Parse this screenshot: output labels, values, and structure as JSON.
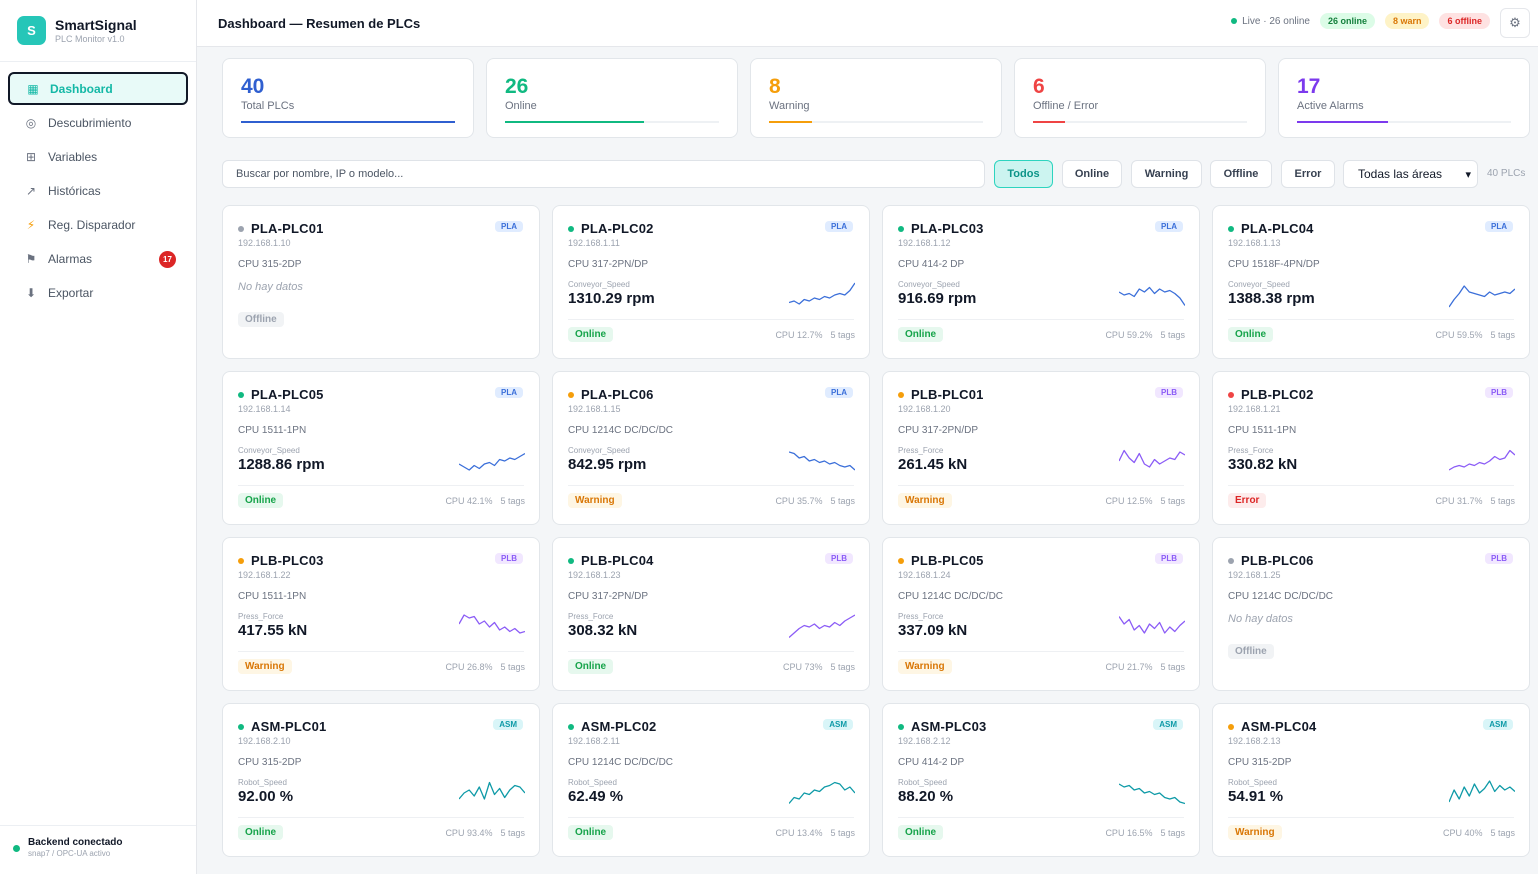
{
  "brand": {
    "logo_letter": "S",
    "name": "SmartSignal",
    "subtitle": "PLC Monitor v1.0"
  },
  "nav": [
    {
      "label": "Dashboard",
      "icon": "grid-square-icon",
      "glyph": "▦",
      "active": true
    },
    {
      "label": "Descubrimiento",
      "icon": "radar-icon",
      "glyph": "◎"
    },
    {
      "label": "Variables",
      "icon": "table-icon",
      "glyph": "⊞"
    },
    {
      "label": "Históricas",
      "icon": "trend-icon",
      "glyph": "↗"
    },
    {
      "label": "Reg. Disparador",
      "icon": "bolt-icon",
      "glyph": "⚡"
    },
    {
      "label": "Alarmas",
      "icon": "flag-icon",
      "glyph": "⚑",
      "badge": "17"
    },
    {
      "label": "Exportar",
      "icon": "download-icon",
      "glyph": "⬇"
    }
  ],
  "footer": {
    "title": "Backend conectado",
    "subtitle": "snap7 / OPC-UA activo"
  },
  "header": {
    "title": "Dashboard — Resumen de PLCs",
    "live": "Live · 26 online",
    "online_pill": "26 online",
    "warn_pill": "8 warn",
    "offline_pill": "6 offline",
    "settings_glyph": "⚙"
  },
  "kpis": [
    {
      "value": "40",
      "label": "Total PLCs",
      "color": "#2f5fd0",
      "fill": 1.0
    },
    {
      "value": "26",
      "label": "Online",
      "color": "#10b981",
      "fill": 0.65
    },
    {
      "value": "8",
      "label": "Warning",
      "color": "#f59e0b",
      "fill": 0.2
    },
    {
      "value": "6",
      "label": "Offline / Error",
      "color": "#ef4444",
      "fill": 0.15
    },
    {
      "value": "17",
      "label": "Active Alarms",
      "color": "#7c3aed",
      "fill": 0.425
    }
  ],
  "filters": {
    "search_placeholder": "Buscar por nombre, IP o modelo...",
    "buttons": [
      "Todos",
      "Online",
      "Warning",
      "Offline",
      "Error"
    ],
    "area": "Todas las áreas",
    "count": "40 PLCs"
  },
  "status_colors": {
    "online": "#10b981",
    "warning": "#f59e0b",
    "error": "#ef4444",
    "offline": "#9ca3af"
  },
  "plcs": [
    {
      "name": "PLA-PLC01",
      "area": "PLA",
      "ip": "192.168.1.10",
      "model": "CPU 315-2DP",
      "status": "offline",
      "status_label": "Offline",
      "no_data": "No hay datos"
    },
    {
      "name": "PLA-PLC02",
      "area": "PLA",
      "ip": "192.168.1.11",
      "model": "CPU 317-2PN/DP",
      "tag": "Conveyor_Speed",
      "value": "1310.29 rpm",
      "status": "online",
      "status_label": "Online",
      "cpu": "CPU 12.7%",
      "tags": "5 tags",
      "spark": [
        0.25,
        0.3,
        0.2,
        0.35,
        0.3,
        0.4,
        0.35,
        0.45,
        0.4,
        0.5,
        0.55,
        0.5,
        0.65,
        0.9
      ]
    },
    {
      "name": "PLA-PLC03",
      "area": "PLA",
      "ip": "192.168.1.12",
      "model": "CPU 414-2 DP",
      "tag": "Conveyor_Speed",
      "value": "916.69 rpm",
      "status": "online",
      "status_label": "Online",
      "cpu": "CPU 59.2%",
      "tags": "5 tags",
      "spark": [
        0.6,
        0.5,
        0.55,
        0.45,
        0.7,
        0.6,
        0.75,
        0.55,
        0.7,
        0.6,
        0.65,
        0.55,
        0.4,
        0.15
      ]
    },
    {
      "name": "PLA-PLC04",
      "area": "PLA",
      "ip": "192.168.1.13",
      "model": "CPU 1518F-4PN/DP",
      "tag": "Conveyor_Speed",
      "value": "1388.38 rpm",
      "status": "online",
      "status_label": "Online",
      "cpu": "CPU 59.5%",
      "tags": "5 tags",
      "spark": [
        0.1,
        0.35,
        0.55,
        0.8,
        0.6,
        0.55,
        0.5,
        0.45,
        0.6,
        0.5,
        0.55,
        0.6,
        0.55,
        0.7
      ]
    },
    {
      "name": "PLA-PLC05",
      "area": "PLA",
      "ip": "192.168.1.14",
      "model": "CPU 1511-1PN",
      "tag": "Conveyor_Speed",
      "value": "1288.86 rpm",
      "status": "online",
      "status_label": "Online",
      "cpu": "CPU 42.1%",
      "tags": "5 tags",
      "spark": [
        0.4,
        0.3,
        0.2,
        0.35,
        0.25,
        0.4,
        0.45,
        0.35,
        0.55,
        0.5,
        0.6,
        0.55,
        0.65,
        0.75
      ]
    },
    {
      "name": "PLA-PLC06",
      "area": "PLA",
      "ip": "192.168.1.15",
      "model": "CPU 1214C DC/DC/DC",
      "tag": "Conveyor_Speed",
      "value": "842.95 rpm",
      "status": "warning",
      "status_label": "Warning",
      "cpu": "CPU 35.7%",
      "tags": "5 tags",
      "spark": [
        0.8,
        0.75,
        0.6,
        0.65,
        0.5,
        0.55,
        0.45,
        0.5,
        0.4,
        0.45,
        0.35,
        0.3,
        0.35,
        0.2
      ]
    },
    {
      "name": "PLB-PLC01",
      "area": "PLB",
      "ip": "192.168.1.20",
      "model": "CPU 317-2PN/DP",
      "tag": "Press_Force",
      "value": "261.45 kN",
      "status": "warning",
      "status_label": "Warning",
      "cpu": "CPU 12.5%",
      "tags": "5 tags",
      "spark": [
        0.5,
        0.85,
        0.6,
        0.45,
        0.75,
        0.4,
        0.3,
        0.55,
        0.4,
        0.5,
        0.6,
        0.55,
        0.8,
        0.7
      ]
    },
    {
      "name": "PLB-PLC02",
      "area": "PLB",
      "ip": "192.168.1.21",
      "model": "CPU 1511-1PN",
      "tag": "Press_Force",
      "value": "330.82 kN",
      "status": "error",
      "status_label": "Error",
      "cpu": "CPU 31.7%",
      "tags": "5 tags",
      "spark": [
        0.2,
        0.3,
        0.35,
        0.3,
        0.4,
        0.35,
        0.45,
        0.4,
        0.5,
        0.65,
        0.55,
        0.6,
        0.85,
        0.7
      ]
    },
    {
      "name": "PLB-PLC03",
      "area": "PLB",
      "ip": "192.168.1.22",
      "model": "CPU 1511-1PN",
      "tag": "Press_Force",
      "value": "417.55 kN",
      "status": "warning",
      "status_label": "Warning",
      "cpu": "CPU 26.8%",
      "tags": "5 tags",
      "spark": [
        0.6,
        0.9,
        0.8,
        0.85,
        0.6,
        0.7,
        0.5,
        0.65,
        0.4,
        0.5,
        0.35,
        0.45,
        0.3,
        0.35
      ]
    },
    {
      "name": "PLB-PLC04",
      "area": "PLB",
      "ip": "192.168.1.23",
      "model": "CPU 317-2PN/DP",
      "tag": "Press_Force",
      "value": "308.32 kN",
      "status": "online",
      "status_label": "Online",
      "cpu": "CPU 73%",
      "tags": "5 tags",
      "spark": [
        0.15,
        0.3,
        0.45,
        0.55,
        0.5,
        0.6,
        0.45,
        0.55,
        0.5,
        0.65,
        0.55,
        0.7,
        0.8,
        0.9
      ]
    },
    {
      "name": "PLB-PLC05",
      "area": "PLB",
      "ip": "192.168.1.24",
      "model": "CPU 1214C DC/DC/DC",
      "tag": "Press_Force",
      "value": "337.09 kN",
      "status": "warning",
      "status_label": "Warning",
      "cpu": "CPU 21.7%",
      "tags": "5 tags",
      "spark": [
        0.85,
        0.6,
        0.75,
        0.4,
        0.55,
        0.3,
        0.6,
        0.45,
        0.65,
        0.3,
        0.5,
        0.35,
        0.55,
        0.7
      ]
    },
    {
      "name": "PLB-PLC06",
      "area": "PLB",
      "ip": "192.168.1.25",
      "model": "CPU 1214C DC/DC/DC",
      "status": "offline",
      "status_label": "Offline",
      "no_data": "No hay datos"
    },
    {
      "name": "ASM-PLC01",
      "area": "ASM",
      "ip": "192.168.2.10",
      "model": "CPU 315-2DP",
      "tag": "Robot_Speed",
      "value": "92.00 %",
      "status": "online",
      "status_label": "Online",
      "cpu": "CPU 93.4%",
      "tags": "5 tags",
      "spark": [
        0.3,
        0.5,
        0.6,
        0.4,
        0.7,
        0.3,
        0.85,
        0.45,
        0.65,
        0.35,
        0.6,
        0.75,
        0.7,
        0.5
      ]
    },
    {
      "name": "ASM-PLC02",
      "area": "ASM",
      "ip": "192.168.2.11",
      "model": "CPU 1214C DC/DC/DC",
      "tag": "Robot_Speed",
      "value": "62.49 %",
      "status": "online",
      "status_label": "Online",
      "cpu": "CPU 13.4%",
      "tags": "5 tags",
      "spark": [
        0.15,
        0.35,
        0.3,
        0.5,
        0.45,
        0.6,
        0.55,
        0.7,
        0.75,
        0.85,
        0.8,
        0.6,
        0.7,
        0.5
      ]
    },
    {
      "name": "ASM-PLC03",
      "area": "ASM",
      "ip": "192.168.2.12",
      "model": "CPU 414-2 DP",
      "tag": "Robot_Speed",
      "value": "88.20 %",
      "status": "online",
      "status_label": "Online",
      "cpu": "CPU 16.5%",
      "tags": "5 tags",
      "spark": [
        0.8,
        0.7,
        0.75,
        0.6,
        0.65,
        0.5,
        0.55,
        0.45,
        0.5,
        0.35,
        0.3,
        0.35,
        0.2,
        0.15
      ]
    },
    {
      "name": "ASM-PLC04",
      "area": "ASM",
      "ip": "192.168.2.13",
      "model": "CPU 315-2DP",
      "tag": "Robot_Speed",
      "value": "54.91 %",
      "status": "warning",
      "status_label": "Warning",
      "cpu": "CPU 40%",
      "tags": "5 tags",
      "spark": [
        0.2,
        0.6,
        0.3,
        0.7,
        0.4,
        0.8,
        0.5,
        0.65,
        0.9,
        0.55,
        0.75,
        0.6,
        0.7,
        0.55
      ]
    }
  ],
  "spark_colors": {
    "PLA": "#3b6fd9",
    "PLB": "#8b5cf6",
    "ASM": "#0e9aa7"
  }
}
